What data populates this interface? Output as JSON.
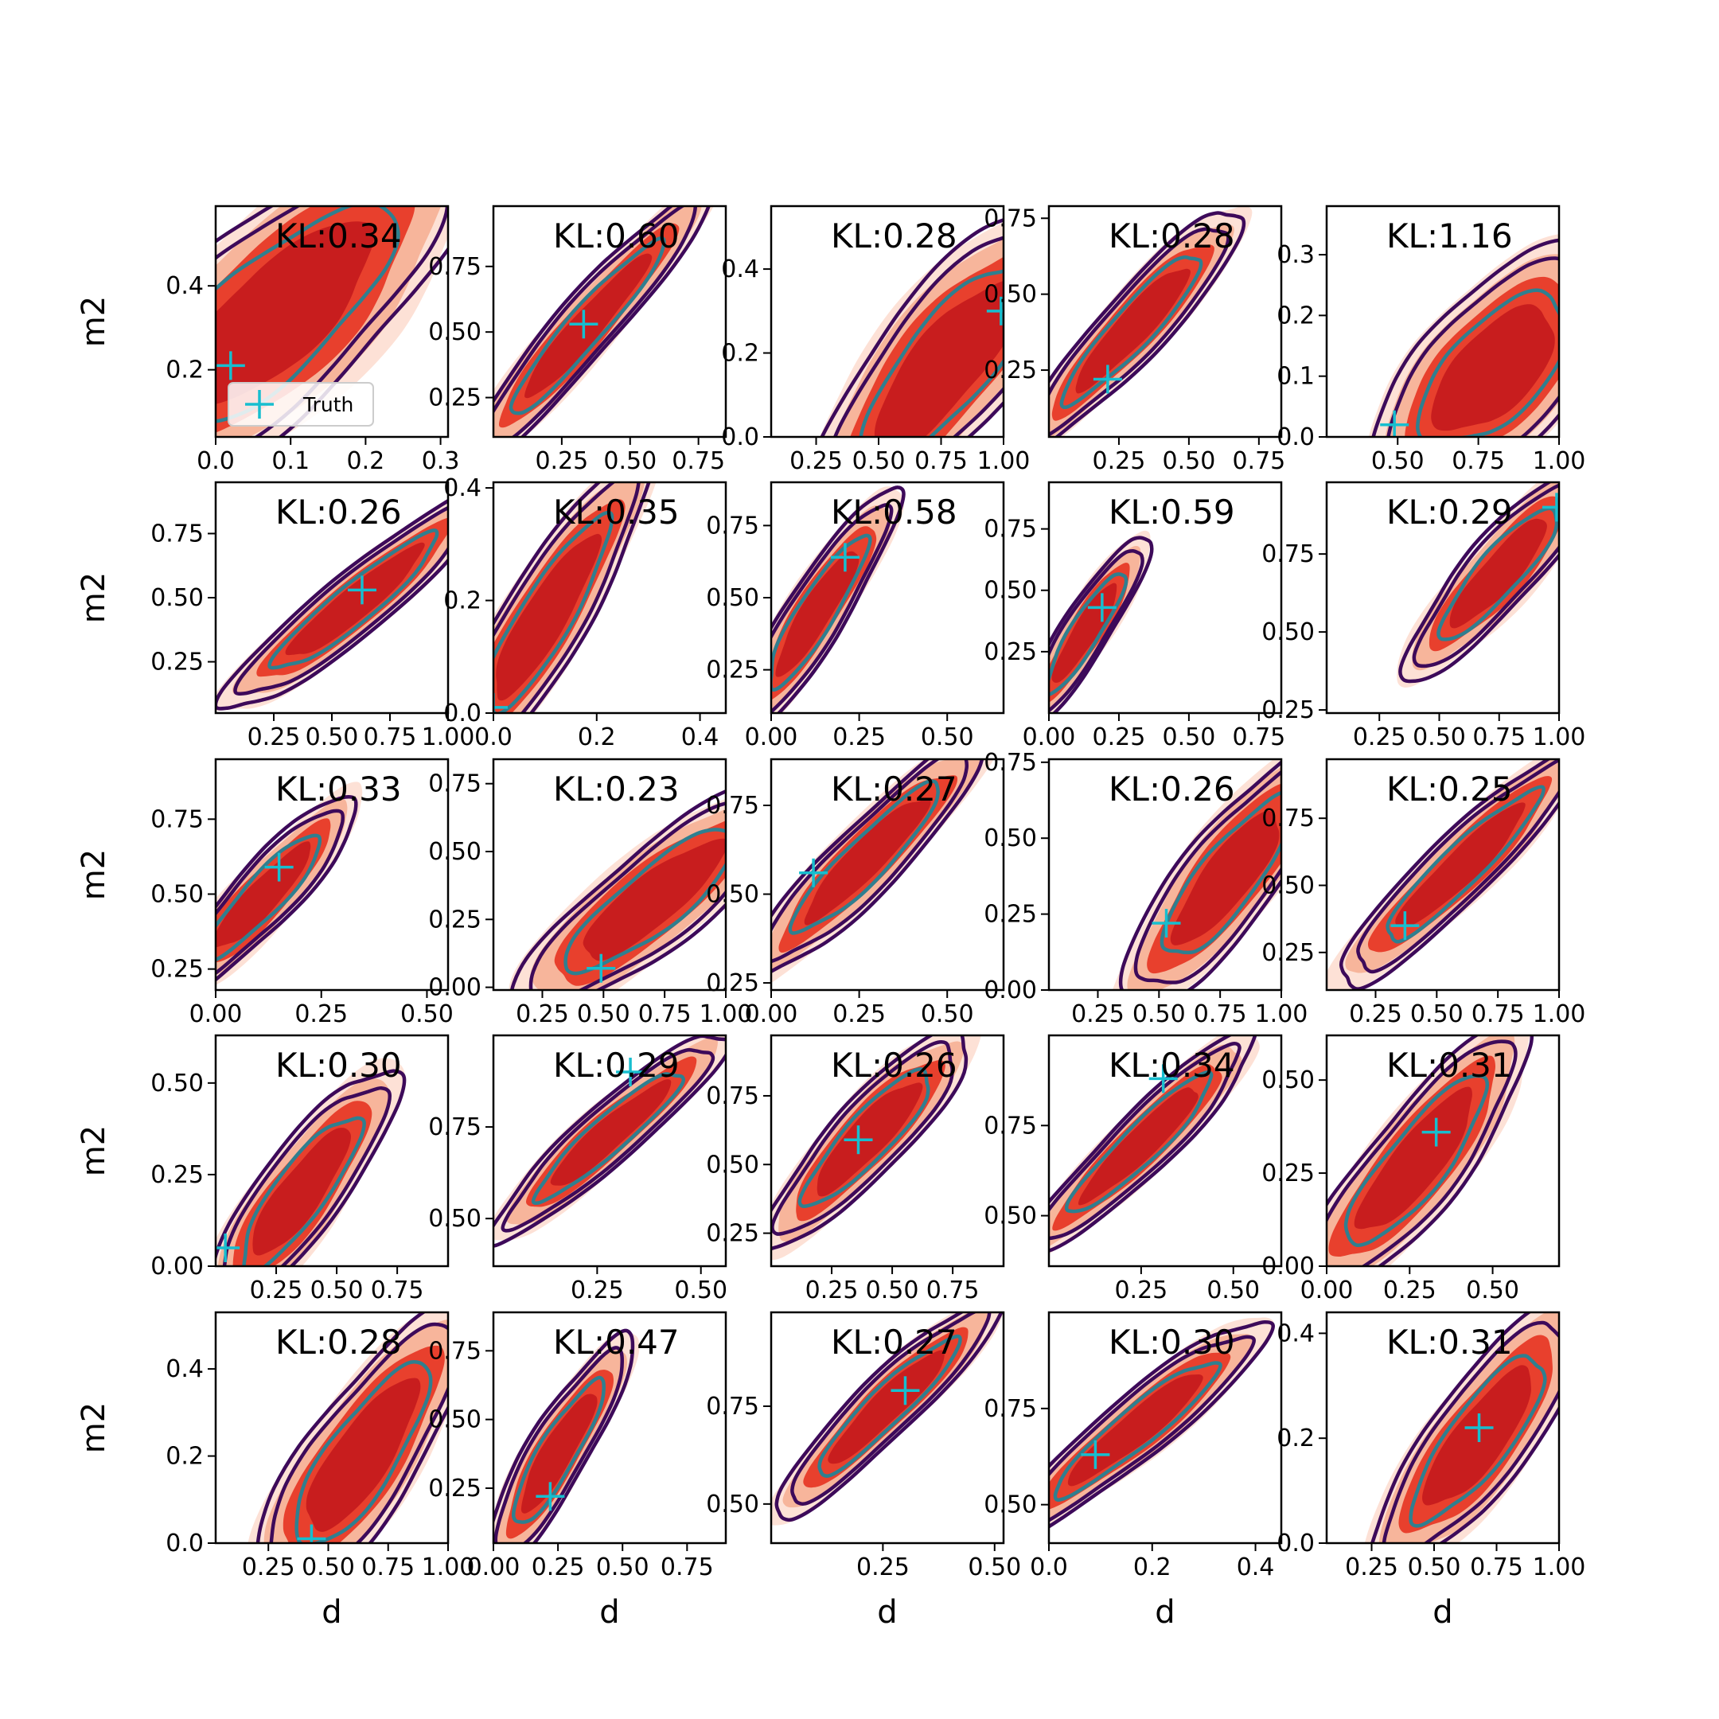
{
  "chart_data": {
    "type": "contour",
    "layout": {
      "rows": 5,
      "cols": 5
    },
    "xlabel": "d",
    "ylabel": "m2",
    "legend": {
      "label": "Truth",
      "marker": "+",
      "location": "lower-left",
      "panel": 0
    },
    "colors": {
      "fill_dark": "#c81d1e",
      "fill_mid": "#e8402d",
      "fill_light": "#f7b59b",
      "fill_faint": "#fde1d6",
      "contour_outer": "#3d0a5a",
      "contour_inner": "#2f7f8f",
      "truth_marker": "#17becf"
    },
    "panels": [
      {
        "kl": "KL:0.34",
        "xlim": [
          0,
          0.31
        ],
        "ylim": [
          0.04,
          0.59
        ],
        "xticks": [
          0,
          0.1,
          0.2,
          0.3
        ],
        "xticklabels": [
          "0.0",
          "0.1",
          "0.2",
          "0.3"
        ],
        "yticks": [
          0.2,
          0.4
        ],
        "yticklabels": [
          "0.2",
          "0.4"
        ],
        "truth": [
          0.02,
          0.21
        ],
        "cx": 0.08,
        "cy": 0.33,
        "sx": 0.09,
        "sy": 0.15,
        "rho": 0.75
      },
      {
        "kl": "KL:0.60",
        "xlim": [
          0,
          0.85
        ],
        "ylim": [
          0.1,
          0.98
        ],
        "xticks": [
          0.25,
          0.5,
          0.75
        ],
        "xticklabels": [
          "0.25",
          "0.50",
          "0.75"
        ],
        "yticks": [
          0.25,
          0.5,
          0.75
        ],
        "yticklabels": [
          "0.25",
          "0.50",
          "0.75"
        ],
        "truth": [
          0.33,
          0.53
        ],
        "cx": 0.34,
        "cy": 0.52,
        "sx": 0.16,
        "sy": 0.19,
        "rho": 0.95
      },
      {
        "kl": "KL:0.28",
        "xlim": [
          0.07,
          1.0
        ],
        "ylim": [
          0,
          0.55
        ],
        "xticks": [
          0.25,
          0.5,
          0.75,
          1.0
        ],
        "xticklabels": [
          "0.25",
          "0.50",
          "0.75",
          "1.00"
        ],
        "yticks": [
          0,
          0.2,
          0.4
        ],
        "yticklabels": [
          "0.0",
          "0.2",
          "0.4"
        ],
        "truth": [
          0.99,
          0.3
        ],
        "cx": 0.77,
        "cy": 0.17,
        "sx": 0.2,
        "sy": 0.14,
        "rho": 0.8
      },
      {
        "kl": "KL:0.28",
        "xlim": [
          0,
          0.83
        ],
        "ylim": [
          0.03,
          0.79
        ],
        "xticks": [
          0.25,
          0.5,
          0.75
        ],
        "xticklabels": [
          "0.25",
          "0.50",
          "0.75"
        ],
        "yticks": [
          0.25,
          0.5,
          0.75
        ],
        "yticklabels": [
          "0.25",
          "0.50",
          "0.75"
        ],
        "truth": [
          0.21,
          0.22
        ],
        "cx": 0.3,
        "cy": 0.39,
        "sx": 0.14,
        "sy": 0.14,
        "rho": 0.92
      },
      {
        "kl": "KL:1.16",
        "xlim": [
          0.28,
          1.0
        ],
        "ylim": [
          0,
          0.38
        ],
        "xticks": [
          0.5,
          0.75,
          1.0
        ],
        "xticklabels": [
          "0.50",
          "0.75",
          "1.00"
        ],
        "yticks": [
          0,
          0.1,
          0.2,
          0.3
        ],
        "yticklabels": [
          "0.0",
          "0.1",
          "0.2",
          "0.3"
        ],
        "truth": [
          0.49,
          0.02
        ],
        "cx": 0.8,
        "cy": 0.11,
        "sx": 0.13,
        "sy": 0.07,
        "rho": 0.6
      },
      {
        "kl": "KL:0.26",
        "xlim": [
          0.0,
          1.0
        ],
        "ylim": [
          0.05,
          0.95
        ],
        "xticks": [
          0.25,
          0.5,
          0.75,
          1.0
        ],
        "xticklabels": [
          "0.25",
          "0.50",
          "0.75",
          "1.00"
        ],
        "yticks": [
          0.25,
          0.5,
          0.75
        ],
        "yticklabels": [
          "0.25",
          "0.50",
          "0.75"
        ],
        "truth": [
          0.63,
          0.53
        ],
        "cx": 0.6,
        "cy": 0.48,
        "sx": 0.2,
        "sy": 0.15,
        "rho": 0.93
      },
      {
        "kl": "KL:0.35",
        "xlim": [
          0,
          0.45
        ],
        "ylim": [
          0,
          0.41
        ],
        "xticks": [
          0,
          0.2,
          0.4
        ],
        "xticklabels": [
          "0.0",
          "0.2",
          "0.4"
        ],
        "yticks": [
          0,
          0.2,
          0.4
        ],
        "yticklabels": [
          "0.0",
          "0.2",
          "0.4"
        ],
        "truth": [
          0.0,
          0.01
        ],
        "cx": 0.1,
        "cy": 0.17,
        "sx": 0.07,
        "sy": 0.1,
        "rho": 0.88
      },
      {
        "kl": "KL:0.58",
        "xlim": [
          0,
          0.66
        ],
        "ylim": [
          0.1,
          0.9
        ],
        "xticks": [
          0,
          0.25,
          0.5
        ],
        "xticklabels": [
          "0.00",
          "0.25",
          "0.50"
        ],
        "yticks": [
          0.25,
          0.5,
          0.75
        ],
        "yticklabels": [
          "0.25",
          "0.50",
          "0.75"
        ],
        "truth": [
          0.21,
          0.64
        ],
        "cx": 0.13,
        "cy": 0.45,
        "sx": 0.08,
        "sy": 0.15,
        "rho": 0.9
      },
      {
        "kl": "KL:0.59",
        "xlim": [
          0,
          0.83
        ],
        "ylim": [
          0,
          0.94
        ],
        "xticks": [
          0,
          0.25,
          0.5,
          0.75
        ],
        "xticklabels": [
          "0.00",
          "0.25",
          "0.50",
          "0.75"
        ],
        "yticks": [
          0.25,
          0.5,
          0.75
        ],
        "yticklabels": [
          "0.25",
          "0.50",
          "0.75"
        ],
        "truth": [
          0.19,
          0.43
        ],
        "cx": 0.13,
        "cy": 0.33,
        "sx": 0.08,
        "sy": 0.14,
        "rho": 0.9
      },
      {
        "kl": "KL:0.29",
        "xlim": [
          0.03,
          1.0
        ],
        "ylim": [
          0.24,
          0.98
        ],
        "xticks": [
          0.25,
          0.5,
          0.75,
          1.0
        ],
        "xticklabels": [
          "0.25",
          "0.50",
          "0.75",
          "1.00"
        ],
        "yticks": [
          0.25,
          0.5,
          0.75
        ],
        "yticklabels": [
          "0.25",
          "0.50",
          "0.75"
        ],
        "truth": [
          0.99,
          0.9
        ],
        "cx": 0.75,
        "cy": 0.69,
        "sx": 0.14,
        "sy": 0.12,
        "rho": 0.88
      },
      {
        "kl": "KL:0.33",
        "xlim": [
          0,
          0.55
        ],
        "ylim": [
          0.18,
          0.95
        ],
        "xticks": [
          0,
          0.25,
          0.5
        ],
        "xticklabels": [
          "0.00",
          "0.25",
          "0.50"
        ],
        "yticks": [
          0.25,
          0.5,
          0.75
        ],
        "yticklabels": [
          "0.25",
          "0.50",
          "0.75"
        ],
        "truth": [
          0.15,
          0.59
        ],
        "cx": 0.11,
        "cy": 0.49,
        "sx": 0.08,
        "sy": 0.12,
        "rho": 0.9
      },
      {
        "kl": "KL:0.23",
        "xlim": [
          0.05,
          1.0
        ],
        "ylim": [
          -0.01,
          0.84
        ],
        "xticks": [
          0.25,
          0.5,
          0.75,
          1.0
        ],
        "xticklabels": [
          "0.25",
          "0.50",
          "0.75",
          "1.00"
        ],
        "yticks": [
          0,
          0.25,
          0.5,
          0.75
        ],
        "yticklabels": [
          "0.00",
          "0.25",
          "0.50",
          "0.75"
        ],
        "truth": [
          0.49,
          0.07
        ],
        "cx": 0.7,
        "cy": 0.32,
        "sx": 0.2,
        "sy": 0.15,
        "rho": 0.85
      },
      {
        "kl": "KL:0.27",
        "xlim": [
          0,
          0.66
        ],
        "ylim": [
          0.23,
          0.88
        ],
        "xticks": [
          0,
          0.25,
          0.5
        ],
        "xticklabels": [
          "0.00",
          "0.25",
          "0.50"
        ],
        "yticks": [
          0.25,
          0.5,
          0.75
        ],
        "yticklabels": [
          "0.25",
          "0.50",
          "0.75"
        ],
        "truth": [
          0.12,
          0.56
        ],
        "cx": 0.27,
        "cy": 0.6,
        "sx": 0.12,
        "sy": 0.12,
        "rho": 0.92
      },
      {
        "kl": "KL:0.26",
        "xlim": [
          0.05,
          1.0
        ],
        "ylim": [
          0,
          0.76
        ],
        "xticks": [
          0.25,
          0.5,
          0.75,
          1.0
        ],
        "xticklabels": [
          "0.25",
          "0.50",
          "0.75",
          "1.00"
        ],
        "yticks": [
          0,
          0.25,
          0.5,
          0.75
        ],
        "yticklabels": [
          "0.00",
          "0.25",
          "0.50",
          "0.75"
        ],
        "truth": [
          0.53,
          0.22
        ],
        "cx": 0.78,
        "cy": 0.37,
        "sx": 0.15,
        "sy": 0.15,
        "rho": 0.83
      },
      {
        "kl": "KL:0.25",
        "xlim": [
          0.05,
          1.0
        ],
        "ylim": [
          0.11,
          0.97
        ],
        "xticks": [
          0.25,
          0.5,
          0.75,
          1.0
        ],
        "xticklabels": [
          "0.25",
          "0.50",
          "0.75",
          "1.00"
        ],
        "yticks": [
          0.25,
          0.5,
          0.75
        ],
        "yticklabels": [
          "0.25",
          "0.50",
          "0.75"
        ],
        "truth": [
          0.37,
          0.35
        ],
        "cx": 0.6,
        "cy": 0.57,
        "sx": 0.18,
        "sy": 0.16,
        "rho": 0.93
      },
      {
        "kl": "KL:0.30",
        "xlim": [
          0,
          0.96
        ],
        "ylim": [
          0,
          0.63
        ],
        "xticks": [
          0.25,
          0.5,
          0.75
        ],
        "xticklabels": [
          "0.25",
          "0.50",
          "0.75"
        ],
        "yticks": [
          0,
          0.25,
          0.5
        ],
        "yticklabels": [
          "0.00",
          "0.25",
          "0.50"
        ],
        "truth": [
          0.04,
          0.05
        ],
        "cx": 0.35,
        "cy": 0.2,
        "sx": 0.14,
        "sy": 0.12,
        "rho": 0.85
      },
      {
        "kl": "KL:0.29",
        "xlim": [
          0,
          0.56
        ],
        "ylim": [
          0.37,
          1.0
        ],
        "xticks": [
          0.25,
          0.5
        ],
        "xticklabels": [
          "0.25",
          "0.50"
        ],
        "yticks": [
          0.5,
          0.75
        ],
        "yticklabels": [
          "0.50",
          "0.75"
        ],
        "truth": [
          0.33,
          0.9
        ],
        "cx": 0.28,
        "cy": 0.73,
        "sx": 0.1,
        "sy": 0.1,
        "rho": 0.93
      },
      {
        "kl": "KL:0.26",
        "xlim": [
          0,
          0.96
        ],
        "ylim": [
          0.13,
          0.97
        ],
        "xticks": [
          0.25,
          0.5,
          0.75
        ],
        "xticklabels": [
          "0.25",
          "0.50",
          "0.75"
        ],
        "yticks": [
          0.25,
          0.5,
          0.75
        ],
        "yticklabels": [
          "0.25",
          "0.50",
          "0.75"
        ],
        "truth": [
          0.36,
          0.59
        ],
        "cx": 0.4,
        "cy": 0.6,
        "sx": 0.15,
        "sy": 0.14,
        "rho": 0.88
      },
      {
        "kl": "KL:0.34",
        "xlim": [
          0,
          0.63
        ],
        "ylim": [
          0.36,
          1.0
        ],
        "xticks": [
          0.25,
          0.5
        ],
        "xticklabels": [
          "0.25",
          "0.50"
        ],
        "yticks": [
          0.5,
          0.75
        ],
        "yticklabels": [
          "0.50",
          "0.75"
        ],
        "truth": [
          0.31,
          0.88
        ],
        "cx": 0.25,
        "cy": 0.7,
        "sx": 0.11,
        "sy": 0.11,
        "rho": 0.93
      },
      {
        "kl": "KL:0.31",
        "xlim": [
          0,
          0.7
        ],
        "ylim": [
          0,
          0.62
        ],
        "xticks": [
          0,
          0.25,
          0.5
        ],
        "xticklabels": [
          "0.00",
          "0.25",
          "0.50"
        ],
        "yticks": [
          0,
          0.25,
          0.5
        ],
        "yticklabels": [
          "0.00",
          "0.25",
          "0.50"
        ],
        "truth": [
          0.33,
          0.36
        ],
        "cx": 0.27,
        "cy": 0.28,
        "sx": 0.12,
        "sy": 0.13,
        "rho": 0.85
      },
      {
        "kl": "KL:0.28",
        "xlim": [
          0.03,
          1.0
        ],
        "ylim": [
          0,
          0.53
        ],
        "xticks": [
          0.25,
          0.5,
          0.75,
          1.0
        ],
        "xticklabels": [
          "0.25",
          "0.50",
          "0.75",
          "1.00"
        ],
        "yticks": [
          0,
          0.2,
          0.4
        ],
        "yticklabels": [
          "0.0",
          "0.2",
          "0.4"
        ],
        "truth": [
          0.43,
          0.01
        ],
        "cx": 0.64,
        "cy": 0.2,
        "sx": 0.16,
        "sy": 0.12,
        "rho": 0.8
      },
      {
        "kl": "KL:0.47",
        "xlim": [
          0,
          0.9
        ],
        "ylim": [
          0.05,
          0.89
        ],
        "xticks": [
          0,
          0.25,
          0.5,
          0.75
        ],
        "xticklabels": [
          "0.00",
          "0.25",
          "0.50",
          "0.75"
        ],
        "yticks": [
          0.25,
          0.5,
          0.75
        ],
        "yticklabels": [
          "0.25",
          "0.50",
          "0.75"
        ],
        "truth": [
          0.22,
          0.22
        ],
        "cx": 0.25,
        "cy": 0.38,
        "sx": 0.1,
        "sy": 0.15,
        "rho": 0.88
      },
      {
        "kl": "KL:0.27",
        "xlim": [
          0,
          0.52
        ],
        "ylim": [
          0.4,
          0.99
        ],
        "xticks": [
          0.25,
          0.5
        ],
        "xticklabels": [
          "0.25",
          "0.50"
        ],
        "yticks": [
          0.5,
          0.75
        ],
        "yticklabels": [
          "0.50",
          "0.75"
        ],
        "truth": [
          0.3,
          0.79
        ],
        "cx": 0.26,
        "cy": 0.75,
        "sx": 0.09,
        "sy": 0.1,
        "rho": 0.93
      },
      {
        "kl": "KL:0.30",
        "xlim": [
          0,
          0.45
        ],
        "ylim": [
          0.4,
          1.0
        ],
        "xticks": [
          0,
          0.2,
          0.4
        ],
        "xticklabels": [
          "0.0",
          "0.2",
          "0.4"
        ],
        "yticks": [
          0.5,
          0.75
        ],
        "yticklabels": [
          "0.50",
          "0.75"
        ],
        "truth": [
          0.09,
          0.63
        ],
        "cx": 0.17,
        "cy": 0.7,
        "sx": 0.09,
        "sy": 0.1,
        "rho": 0.93
      },
      {
        "kl": "KL:0.31",
        "xlim": [
          0.07,
          1.0
        ],
        "ylim": [
          0,
          0.44
        ],
        "xticks": [
          0.25,
          0.5,
          0.75,
          1.0
        ],
        "xticklabels": [
          "0.25",
          "0.50",
          "0.75",
          "1.00"
        ],
        "yticks": [
          0,
          0.2,
          0.4
        ],
        "yticklabels": [
          "0.0",
          "0.2",
          "0.4"
        ],
        "truth": [
          0.68,
          0.22
        ],
        "cx": 0.68,
        "cy": 0.2,
        "sx": 0.15,
        "sy": 0.09,
        "rho": 0.82
      }
    ]
  }
}
